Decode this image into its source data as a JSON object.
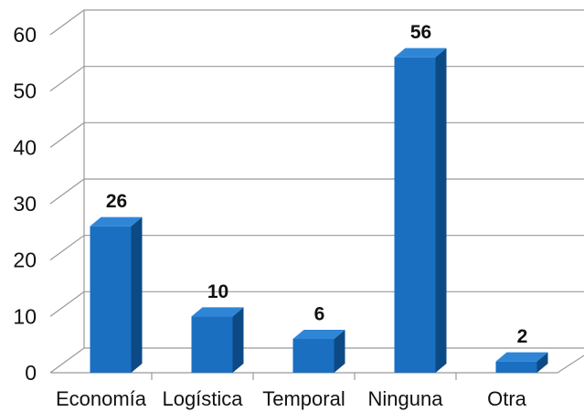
{
  "chart_data": {
    "type": "bar3d",
    "categories": [
      "Economía",
      "Logística",
      "Temporal",
      "Ninguna",
      "Otra"
    ],
    "values": [
      26,
      10,
      6,
      56,
      2
    ],
    "color": "#1a6fc0",
    "ylim": [
      0,
      60
    ],
    "yticks": [
      0,
      10,
      20,
      30,
      40,
      50,
      60
    ],
    "grid": true
  }
}
